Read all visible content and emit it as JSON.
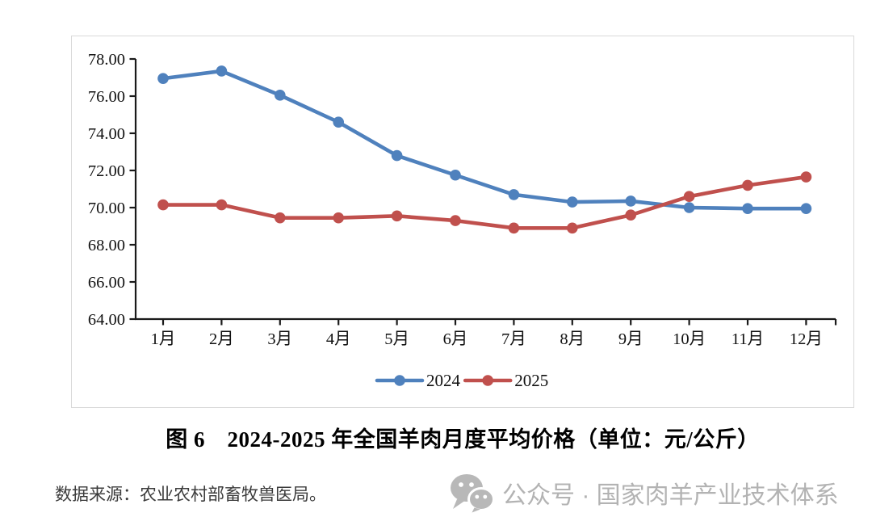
{
  "page": {
    "source_note": "数据来源：农业农村部畜牧兽医局。",
    "watermark_text": "公众号 · 国家肉羊产业技术体系"
  },
  "chart_data": {
    "type": "line",
    "title": "图 6　2024-2025 年全国羊肉月度平均价格（单位：元/公斤）",
    "unit": "元/公斤",
    "categories": [
      "1月",
      "2月",
      "3月",
      "4月",
      "5月",
      "6月",
      "7月",
      "8月",
      "9月",
      "10月",
      "11月",
      "12月"
    ],
    "series": [
      {
        "name": "2024",
        "color": "#4F81BD",
        "values": [
          76.95,
          77.35,
          76.05,
          74.6,
          72.8,
          71.75,
          70.7,
          70.3,
          70.35,
          70.0,
          69.95,
          69.95
        ]
      },
      {
        "name": "2025",
        "color": "#C0504D",
        "values": [
          70.15,
          70.15,
          69.45,
          69.45,
          69.55,
          69.3,
          68.9,
          68.9,
          69.6,
          70.6,
          71.2,
          71.65
        ]
      }
    ],
    "ylim": [
      64,
      78
    ],
    "ytick_step": 2,
    "ytick_labels": [
      "64.00",
      "66.00",
      "68.00",
      "70.00",
      "72.00",
      "74.00",
      "76.00",
      "78.00"
    ],
    "grid": false,
    "legend_position": "bottom-center",
    "axis_color": "#1a1a1a"
  }
}
